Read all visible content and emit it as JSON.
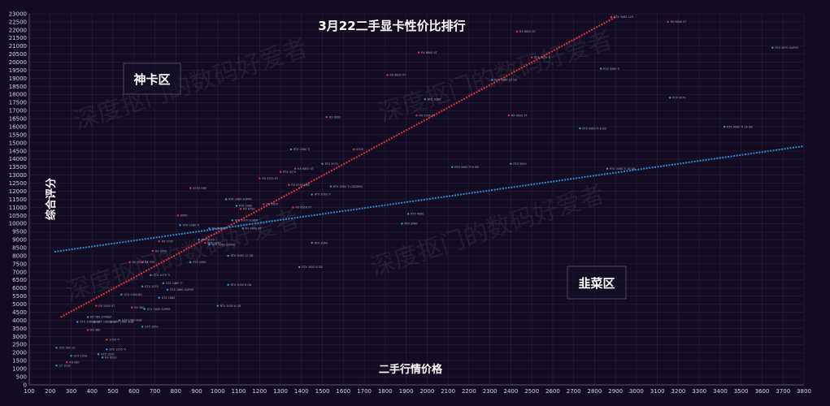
{
  "chart_data": {
    "type": "scatter",
    "title": "3月22二手显卡性价比排行",
    "xlabel": "二手行情价格",
    "ylabel": "综合评分",
    "xlim": [
      100,
      3800
    ],
    "ylim": [
      0,
      23000
    ],
    "x_ticks": [
      100,
      200,
      300,
      400,
      500,
      600,
      700,
      800,
      900,
      1000,
      1100,
      1200,
      1300,
      1400,
      1500,
      1600,
      1700,
      1800,
      1900,
      2000,
      2100,
      2200,
      2300,
      2400,
      2500,
      2600,
      2700,
      2800,
      2900,
      3000,
      3100,
      3200,
      3300,
      3400,
      3500,
      3600,
      3700,
      3800
    ],
    "y_ticks": [
      0,
      500,
      1000,
      1500,
      2000,
      2500,
      3000,
      3500,
      4000,
      4500,
      5000,
      5500,
      6000,
      6500,
      7000,
      7500,
      8000,
      8500,
      9000,
      9500,
      10000,
      10500,
      11000,
      11500,
      12000,
      12500,
      13000,
      13500,
      14000,
      14500,
      15000,
      15500,
      16000,
      16500,
      17000,
      17500,
      18000,
      18500,
      19000,
      19500,
      20000,
      20500,
      21000,
      21500,
      22000,
      22500,
      23000
    ],
    "grid": true,
    "zones": [
      {
        "name": "god",
        "label": "神卡区"
      },
      {
        "name": "leek",
        "label": "韭菜区"
      }
    ],
    "watermark": "深度抠门的数码好爱者",
    "trendlines": [
      {
        "name": "red",
        "color": "#e8343d",
        "x": [
          250,
          2900
        ],
        "y": [
          4200,
          22800
        ]
      },
      {
        "name": "blue",
        "color": "#2b8fd6",
        "x": [
          220,
          3800
        ],
        "y": [
          8250,
          14800
        ]
      }
    ],
    "series": [
      {
        "color": "#e8343d",
        "points": [
          {
            "x": 2880,
            "y": 22800,
            "label": "RTX 3080 12G"
          },
          {
            "x": 3150,
            "y": 22500,
            "label": "RX 6800 XT"
          },
          {
            "x": 2430,
            "y": 21900,
            "label": "RX 6800 XT"
          },
          {
            "x": 1960,
            "y": 20600,
            "label": "RX 6800 XT"
          },
          {
            "x": 2500,
            "y": 20300,
            "label": "RTX 3070 Ti"
          },
          {
            "x": 1810,
            "y": 19200,
            "label": "RX 6800 XT"
          },
          {
            "x": 1520,
            "y": 16600,
            "label": "RX 6600"
          },
          {
            "x": 1950,
            "y": 16700,
            "label": "RX 5700 XT"
          },
          {
            "x": 2390,
            "y": 16700,
            "label": "RX 6600 XT"
          },
          {
            "x": 1650,
            "y": 14600,
            "label": "6700"
          },
          {
            "x": 1370,
            "y": 13400,
            "label": "RX 6650 XT"
          },
          {
            "x": 1200,
            "y": 12800,
            "label": "RX 5700 XT"
          },
          {
            "x": 1300,
            "y": 13200,
            "label": "RTX 3070"
          },
          {
            "x": 1340,
            "y": 12400,
            "label": "RX 6750 GRE"
          },
          {
            "x": 870,
            "y": 12200,
            "label": "6750 GRE"
          },
          {
            "x": 1220,
            "y": 11200,
            "label": "RX 7600"
          },
          {
            "x": 1360,
            "y": 11000,
            "label": "RX 6650 XT"
          },
          {
            "x": 1110,
            "y": 10900,
            "label": "RX 6700"
          },
          {
            "x": 810,
            "y": 10500,
            "label": "6500"
          },
          {
            "x": 720,
            "y": 8900,
            "label": "RX 5700"
          },
          {
            "x": 940,
            "y": 8800,
            "label": "RTX 2070"
          },
          {
            "x": 580,
            "y": 7600,
            "label": "RX 5600 XT"
          },
          {
            "x": 690,
            "y": 8300,
            "label": "RX 5700"
          },
          {
            "x": 640,
            "y": 7600,
            "label": "RX 590"
          },
          {
            "x": 380,
            "y": 3400,
            "label": "RX 480"
          },
          {
            "x": 470,
            "y": 2800,
            "label": "1050 Ti"
          },
          {
            "x": 280,
            "y": 1400,
            "label": "RX 560"
          },
          {
            "x": 590,
            "y": 4800,
            "label": "RX 580"
          },
          {
            "x": 420,
            "y": 4900,
            "label": "RX 5500 XT"
          }
        ]
      },
      {
        "color": "#3a9be0",
        "points": [
          {
            "x": 3650,
            "y": 20900,
            "label": "RTX 4070 SUPER"
          },
          {
            "x": 2830,
            "y": 19600,
            "label": "RTX 3080 Ti"
          },
          {
            "x": 3160,
            "y": 17800,
            "label": "RTX 4070"
          },
          {
            "x": 2310,
            "y": 18900,
            "label": "RTX 3080 12 GB"
          },
          {
            "x": 1990,
            "y": 17700,
            "label": "RTX 3080"
          },
          {
            "x": 3420,
            "y": 16000,
            "label": "RTX 4060 Ti 16 GB"
          },
          {
            "x": 2730,
            "y": 15900,
            "label": "RTX 4060 Ti 8 GB"
          },
          {
            "x": 1350,
            "y": 14600,
            "label": "RTX 2080 Ti"
          },
          {
            "x": 1500,
            "y": 13700,
            "label": "RTX 3070"
          },
          {
            "x": 2120,
            "y": 13500,
            "label": "RTX 3060 Ti 8 GB"
          },
          {
            "x": 2400,
            "y": 13700,
            "label": "RTX 3090"
          },
          {
            "x": 2860,
            "y": 13400,
            "label": "RTX 3060 Ti 16 GB"
          },
          {
            "x": 1540,
            "y": 12300,
            "label": "RTX 3060 Ti GDDR6X"
          },
          {
            "x": 1450,
            "y": 11800,
            "label": "RTX 3060 Ti"
          },
          {
            "x": 1040,
            "y": 11500,
            "label": "RTX 2080 SUPER"
          },
          {
            "x": 1090,
            "y": 11100,
            "label": "RTX 2080"
          },
          {
            "x": 1910,
            "y": 10600,
            "label": "RTX 4060"
          },
          {
            "x": 1880,
            "y": 10000,
            "label": "RTX 3060"
          },
          {
            "x": 820,
            "y": 9900,
            "label": "GTX 1080 Ti"
          },
          {
            "x": 1070,
            "y": 10200,
            "label": "RTX 2070 SUPER"
          },
          {
            "x": 1120,
            "y": 9700,
            "label": "RX 6600 XT"
          },
          {
            "x": 960,
            "y": 9700,
            "label": "RX 6600 XT"
          },
          {
            "x": 910,
            "y": 9000,
            "label": "RTX 2070"
          },
          {
            "x": 960,
            "y": 8700,
            "label": "RTX 2060 SUPER"
          },
          {
            "x": 1450,
            "y": 8800,
            "label": "RTX 3060"
          },
          {
            "x": 1050,
            "y": 8000,
            "label": "RTX 3060 12 GB"
          },
          {
            "x": 870,
            "y": 7600,
            "label": "RTX 2060"
          },
          {
            "x": 1390,
            "y": 7300,
            "label": "RTX 3050 8 GB"
          },
          {
            "x": 680,
            "y": 6800,
            "label": "GTX 1070 Ti"
          },
          {
            "x": 740,
            "y": 6300,
            "label": "GTX 1660 Ti"
          },
          {
            "x": 640,
            "y": 6100,
            "label": "GTX 1070"
          },
          {
            "x": 760,
            "y": 5900,
            "label": "GTX 1660 SUPER"
          },
          {
            "x": 1050,
            "y": 6200,
            "label": "RTX 3050 6 GB"
          },
          {
            "x": 720,
            "y": 5400,
            "label": "GTX 1660"
          },
          {
            "x": 540,
            "y": 5600,
            "label": "GTX 1060 6G"
          },
          {
            "x": 1000,
            "y": 4900,
            "label": "RTX 3050 6 GB"
          },
          {
            "x": 650,
            "y": 4700,
            "label": "GTX 1650 SUPER"
          },
          {
            "x": 380,
            "y": 4200,
            "label": "RX 580 2048SP"
          },
          {
            "x": 490,
            "y": 3900,
            "label": "GTX 1060 3GB"
          },
          {
            "x": 640,
            "y": 3600,
            "label": "GTX 1650"
          },
          {
            "x": 410,
            "y": 3900,
            "label": "GTX 1060 5GB"
          },
          {
            "x": 530,
            "y": 4000,
            "label": "GTX 1060 6GB"
          },
          {
            "x": 330,
            "y": 3900,
            "label": "GTX 1060 3GB"
          },
          {
            "x": 470,
            "y": 2200,
            "label": "GTX 1050 Ti"
          },
          {
            "x": 230,
            "y": 2300,
            "label": "GTX 960 2G"
          },
          {
            "x": 300,
            "y": 1800,
            "label": "GTX 1050"
          },
          {
            "x": 430,
            "y": 1900,
            "label": "GTX 1050"
          },
          {
            "x": 450,
            "y": 1700,
            "label": "RX 6500"
          },
          {
            "x": 230,
            "y": 1200,
            "label": "GT 1030"
          }
        ]
      }
    ]
  }
}
